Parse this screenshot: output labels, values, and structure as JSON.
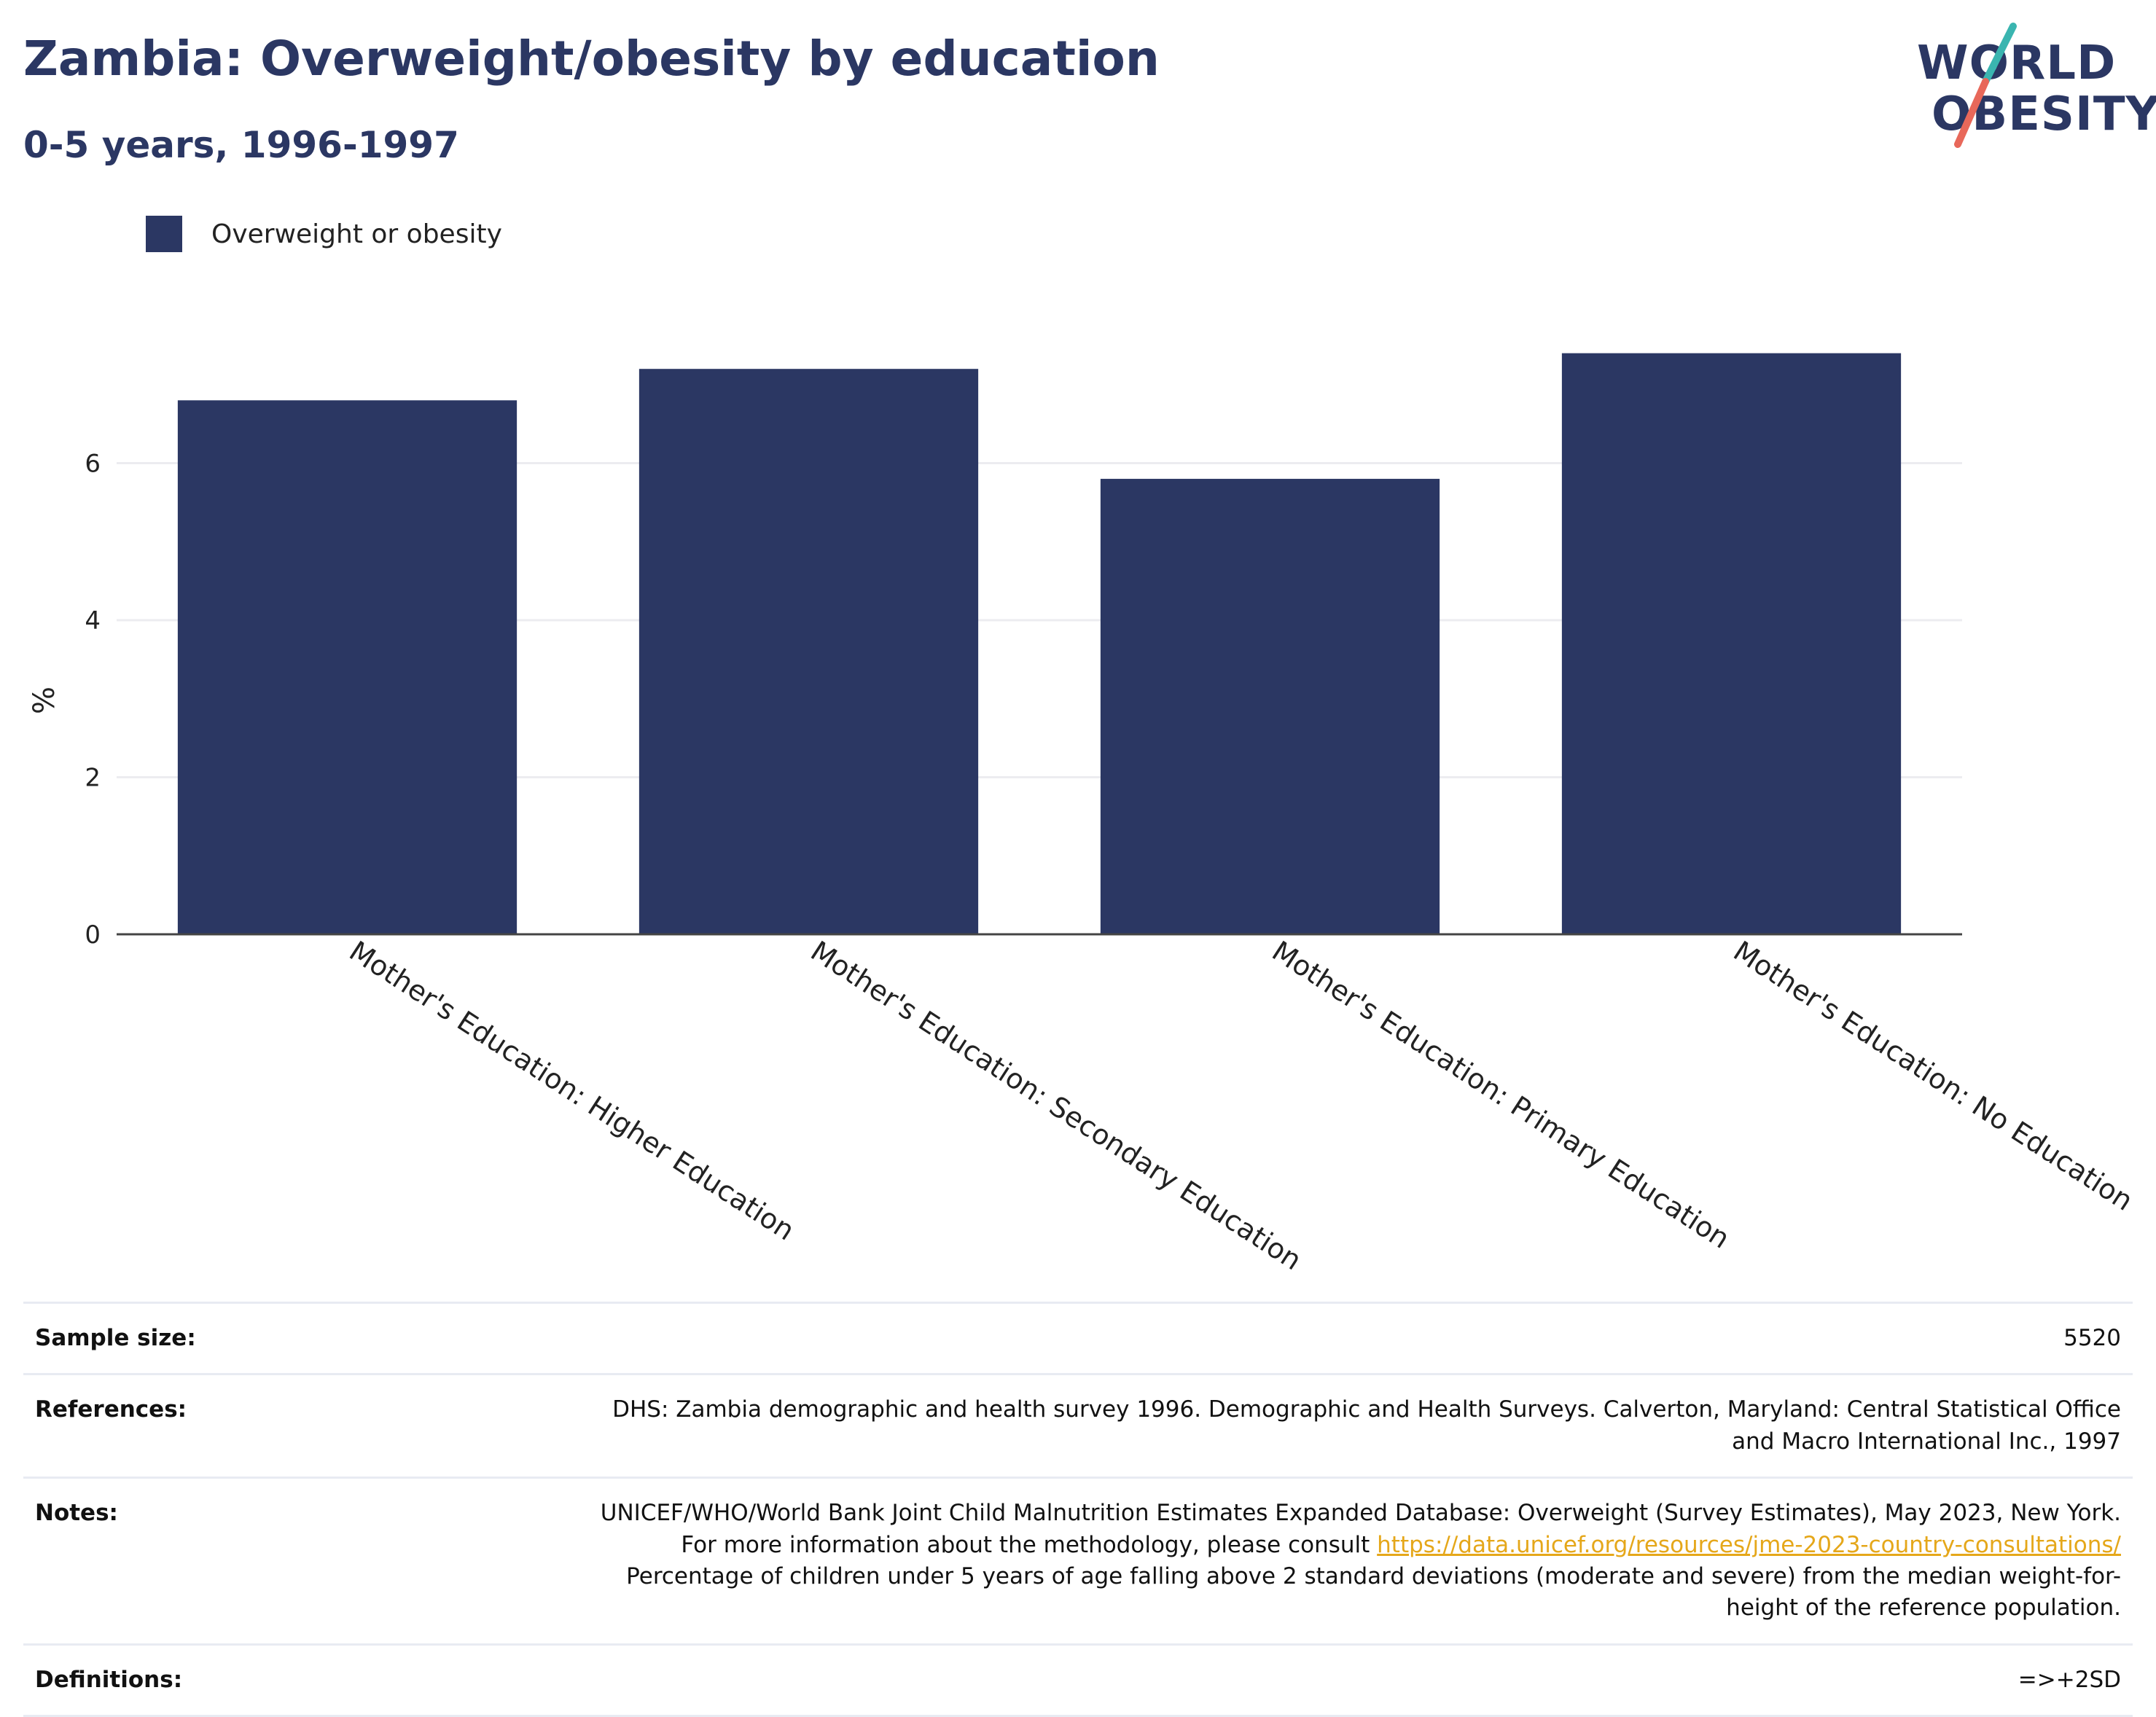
{
  "header": {
    "title": "Zambia: Overweight/obesity by education",
    "subtitle": "0-5 years, 1996-1997"
  },
  "logo": {
    "line1": "WORLD",
    "line2": "OBESITY",
    "colors": {
      "text": "#2b3763",
      "slash_top": "#3ab5b0",
      "slash_bottom": "#e8685a"
    }
  },
  "chart_data": {
    "type": "bar",
    "categories": [
      "Mother's Education: Higher Education",
      "Mother's Education: Secondary Education",
      "Mother's Education: Primary Education",
      "Mother's Education: No Education"
    ],
    "series": [
      {
        "name": "Overweight or obesity",
        "values": [
          6.8,
          7.2,
          5.8,
          7.4
        ],
        "color": "#2b3763"
      }
    ],
    "ylabel": "%",
    "ylim": [
      0,
      8
    ],
    "yticks": [
      0,
      2,
      4,
      6
    ],
    "grid": true,
    "legend": "top-left"
  },
  "info": {
    "sample_size": {
      "label": "Sample size:",
      "value": "5520"
    },
    "references": {
      "label": "References:",
      "value": "DHS: Zambia demographic and health survey 1996. Demographic and Health Surveys. Calverton, Maryland: Central Statistical Office and Macro International Inc., 1997"
    },
    "notes": {
      "label": "Notes:",
      "text_before": "UNICEF/WHO/World Bank Joint Child Malnutrition Estimates Expanded Database: Overweight (Survey Estimates), May 2023, New York. For more information about the methodology, please consult ",
      "link": "https://data.unicef.org/resources/jme-2023-country-consultations/",
      "text_after": " Percentage of children under 5 years of age falling above 2 standard deviations (moderate and severe) from the median weight-for-height of the reference population."
    },
    "definitions": {
      "label": "Definitions:",
      "value": "=>+2SD"
    }
  }
}
